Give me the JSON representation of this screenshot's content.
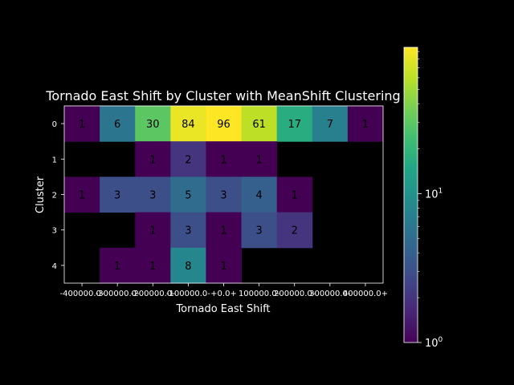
{
  "chart_data": {
    "type": "heatmap",
    "title": "Tornado East Shift by Cluster with MeanShift Clustering",
    "xlabel": "Tornado East Shift",
    "ylabel": "Cluster",
    "x_categories": [
      "-400000.0-",
      "-300000.0-",
      "-200000.0-",
      "-100000.0-",
      "+0.0+",
      "100000.0-",
      "200000.0-",
      "300000.0-",
      "400000.0+"
    ],
    "x_tick_labels": [
      "-400000.0-",
      "-300000.0-",
      "-200000.0-",
      "-100000.0-",
      "+0.0+",
      "100000.0-",
      "200000.0-",
      "300000.0-",
      "400000.0+"
    ],
    "y_categories": [
      "0",
      "1",
      "2",
      "3",
      "4"
    ],
    "values": [
      [
        1,
        6,
        30,
        84,
        96,
        61,
        17,
        7,
        1
      ],
      [
        null,
        null,
        1,
        2,
        1,
        1,
        null,
        null,
        null
      ],
      [
        1,
        3,
        3,
        5,
        3,
        4,
        1,
        null,
        null
      ],
      [
        null,
        null,
        1,
        3,
        1,
        3,
        2,
        null,
        null
      ],
      [
        null,
        1,
        1,
        8,
        1,
        null,
        null,
        null,
        null
      ]
    ],
    "colorscale": "viridis",
    "color_scale_type": "log",
    "color_range": [
      1,
      96
    ],
    "colorbar_ticks": [
      {
        "value": 1,
        "label": "10",
        "exp": "0"
      },
      {
        "value": 10,
        "label": "10",
        "exp": "1"
      }
    ],
    "background": "#000000",
    "foreground": "#ffffff",
    "annotation_color": "#000000",
    "grid": false
  }
}
